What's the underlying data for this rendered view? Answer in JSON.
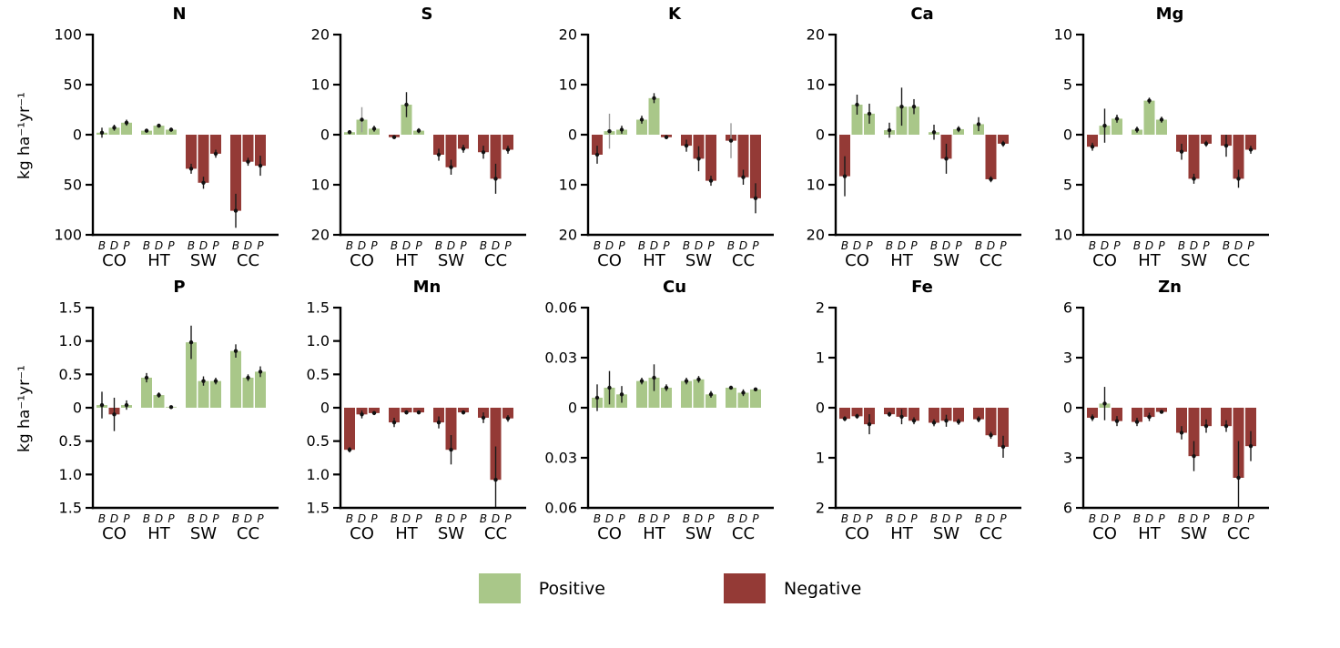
{
  "figure": {
    "ylabel": "kg ha⁻¹yr⁻¹",
    "group_labels": [
      "CO",
      "HT",
      "SW",
      "CC"
    ],
    "bar_labels": [
      "B",
      "D",
      "P"
    ],
    "colors": {
      "positive": "#a9c789",
      "negative": "#943a36",
      "error": "#1a1a1a",
      "gray_error": "#999999",
      "axis": "#000000"
    },
    "legend": [
      {
        "label": "Positive",
        "color": "#a9c789"
      },
      {
        "label": "Negative",
        "color": "#943a36"
      }
    ]
  },
  "chart_data": [
    {
      "type": "bar",
      "title": "N",
      "ylim": [
        -100,
        100
      ],
      "tick_values": [
        100,
        50,
        0,
        -50,
        -100
      ],
      "tick_labels": [
        "100",
        "50",
        "0",
        "50",
        "100"
      ],
      "values": [
        [
          2,
          7,
          12
        ],
        [
          4,
          9,
          5
        ],
        [
          -34,
          -48,
          -19
        ],
        [
          -76,
          -27,
          -31
        ]
      ],
      "errors": [
        [
          5,
          3,
          3
        ],
        [
          2,
          2,
          2
        ],
        [
          5,
          6,
          4
        ],
        [
          17,
          4,
          10
        ]
      ],
      "gray_errors": []
    },
    {
      "type": "bar",
      "title": "S",
      "ylim": [
        -20,
        20
      ],
      "tick_values": [
        20,
        10,
        0,
        -10,
        -20
      ],
      "tick_labels": [
        "20",
        "10",
        "0",
        "10",
        "20"
      ],
      "values": [
        [
          0.5,
          3,
          1.2
        ],
        [
          -0.5,
          6,
          0.8
        ],
        [
          -4,
          -6.5,
          -2.8
        ],
        [
          -3.5,
          -8.8,
          -3
        ]
      ],
      "errors": [
        [
          0.4,
          2.5,
          0.6
        ],
        [
          0.3,
          2.5,
          0.5
        ],
        [
          1.2,
          1.5,
          0.8
        ],
        [
          1.3,
          3,
          0.8
        ]
      ],
      "gray_errors": [
        [
          0,
          1
        ]
      ]
    },
    {
      "type": "bar",
      "title": "K",
      "ylim": [
        -20,
        20
      ],
      "tick_values": [
        20,
        10,
        0,
        -10,
        -20
      ],
      "tick_labels": [
        "20",
        "10",
        "0",
        "10",
        "20"
      ],
      "values": [
        [
          -4,
          0.7,
          1
        ],
        [
          3,
          7.3,
          -0.5
        ],
        [
          -2.2,
          -4.8,
          -9.2
        ],
        [
          -1.2,
          -8.5,
          -12.7
        ]
      ],
      "errors": [
        [
          1.8,
          3.5,
          0.8
        ],
        [
          0.8,
          1,
          0.4
        ],
        [
          1.2,
          2.5,
          1
        ],
        [
          3.5,
          1.5,
          3
        ]
      ],
      "gray_errors": [
        [
          0,
          1
        ],
        [
          3,
          0
        ]
      ]
    },
    {
      "type": "bar",
      "title": "Ca",
      "ylim": [
        -20,
        20
      ],
      "tick_values": [
        20,
        10,
        0,
        -10,
        -20
      ],
      "tick_labels": [
        "20",
        "10",
        "0",
        "10",
        "20"
      ],
      "values": [
        [
          -8.3,
          6,
          4.2
        ],
        [
          0.9,
          5.6,
          5.6
        ],
        [
          0.5,
          -4.8,
          1.1
        ],
        [
          2.1,
          -8.9,
          -1.8
        ]
      ],
      "errors": [
        [
          4,
          2,
          2
        ],
        [
          1.5,
          3.8,
          1.5
        ],
        [
          1.5,
          3,
          0.6
        ],
        [
          1.4,
          0.6,
          0.6
        ]
      ],
      "gray_errors": []
    },
    {
      "type": "bar",
      "title": "Mg",
      "ylim": [
        -10,
        10
      ],
      "tick_values": [
        10,
        5,
        0,
        -5,
        -10
      ],
      "tick_labels": [
        "10",
        "5",
        "0",
        "5",
        "10"
      ],
      "values": [
        [
          -1.2,
          0.9,
          1.6
        ],
        [
          0.5,
          3.4,
          1.5
        ],
        [
          -1.7,
          -4.4,
          -0.9
        ],
        [
          -1.1,
          -4.4,
          -1.5
        ]
      ],
      "errors": [
        [
          0.4,
          1.7,
          0.4
        ],
        [
          0.3,
          0.3,
          0.3
        ],
        [
          0.8,
          0.5,
          0.3
        ],
        [
          1.1,
          0.9,
          0.4
        ]
      ],
      "gray_errors": []
    },
    {
      "type": "bar",
      "title": "P",
      "ylim": [
        -1.5,
        1.5
      ],
      "tick_values": [
        1.5,
        1.0,
        0.5,
        0,
        -0.5,
        -1.0,
        -1.5
      ],
      "tick_labels": [
        "1.5",
        "1.0",
        "0.5",
        "0",
        "0.5",
        "1.0",
        "1.5"
      ],
      "values": [
        [
          0.04,
          -0.1,
          0.04
        ],
        [
          0.45,
          0.19,
          0.01
        ],
        [
          0.98,
          0.4,
          0.4
        ],
        [
          0.85,
          0.45,
          0.54
        ]
      ],
      "errors": [
        [
          0.2,
          0.25,
          0.07
        ],
        [
          0.07,
          0.04,
          0.02
        ],
        [
          0.25,
          0.07,
          0.05
        ],
        [
          0.1,
          0.05,
          0.08
        ]
      ],
      "gray_errors": []
    },
    {
      "type": "bar",
      "title": "Mn",
      "ylim": [
        -1.5,
        1.5
      ],
      "tick_values": [
        1.5,
        1.0,
        0.5,
        0,
        -0.5,
        -1.0,
        -1.5
      ],
      "tick_labels": [
        "1.5",
        "1.0",
        "0.5",
        "0",
        "0.5",
        "1.0",
        "1.5"
      ],
      "values": [
        [
          -0.63,
          -0.1,
          -0.08
        ],
        [
          -0.22,
          -0.07,
          -0.07
        ],
        [
          -0.22,
          -0.63,
          -0.07
        ],
        [
          -0.15,
          -1.08,
          -0.16
        ]
      ],
      "errors": [
        [
          0.04,
          0.06,
          0.03
        ],
        [
          0.07,
          0.03,
          0.02
        ],
        [
          0.09,
          0.22,
          0.03
        ],
        [
          0.08,
          0.5,
          0.05
        ]
      ],
      "gray_errors": []
    },
    {
      "type": "bar",
      "title": "Cu",
      "ylim": [
        -0.06,
        0.06
      ],
      "tick_values": [
        0.06,
        0.03,
        0,
        -0.03,
        -0.06
      ],
      "tick_labels": [
        "0.06",
        "0.03",
        "0",
        "0.03",
        "0.06"
      ],
      "values": [
        [
          0.006,
          0.012,
          0.008
        ],
        [
          0.016,
          0.018,
          0.012
        ],
        [
          0.016,
          0.017,
          0.008
        ],
        [
          0.012,
          0.009,
          0.011
        ]
      ],
      "errors": [
        [
          0.008,
          0.01,
          0.005
        ],
        [
          0.002,
          0.008,
          0.002
        ],
        [
          0.002,
          0.002,
          0.002
        ],
        [
          0.001,
          0.002,
          0.001
        ]
      ],
      "gray_errors": []
    },
    {
      "type": "bar",
      "title": "Fe",
      "ylim": [
        -2,
        2
      ],
      "tick_values": [
        2,
        1,
        0,
        -1,
        -2
      ],
      "tick_labels": [
        "2",
        "1",
        "0",
        "1",
        "2"
      ],
      "values": [
        [
          -0.22,
          -0.17,
          -0.33
        ],
        [
          -0.13,
          -0.18,
          -0.26
        ],
        [
          -0.3,
          -0.26,
          -0.28
        ],
        [
          -0.23,
          -0.55,
          -0.78
        ]
      ],
      "errors": [
        [
          0.05,
          0.05,
          0.2
        ],
        [
          0.05,
          0.15,
          0.07
        ],
        [
          0.07,
          0.12,
          0.06
        ],
        [
          0.06,
          0.07,
          0.22
        ]
      ],
      "gray_errors": []
    },
    {
      "type": "bar",
      "title": "Zn",
      "ylim": [
        -6,
        6
      ],
      "tick_values": [
        6,
        3,
        0,
        -3,
        -6
      ],
      "tick_labels": [
        "6",
        "3",
        "0",
        "3",
        "6"
      ],
      "values": [
        [
          -0.6,
          0.25,
          -0.8
        ],
        [
          -0.85,
          -0.55,
          -0.25
        ],
        [
          -1.5,
          -2.9,
          -1.1
        ],
        [
          -1.1,
          -4.2,
          -2.3
        ]
      ],
      "errors": [
        [
          0.2,
          1.0,
          0.3
        ],
        [
          0.25,
          0.25,
          0.1
        ],
        [
          0.4,
          0.9,
          0.4
        ],
        [
          0.35,
          2.2,
          0.9
        ]
      ],
      "gray_errors": []
    }
  ]
}
